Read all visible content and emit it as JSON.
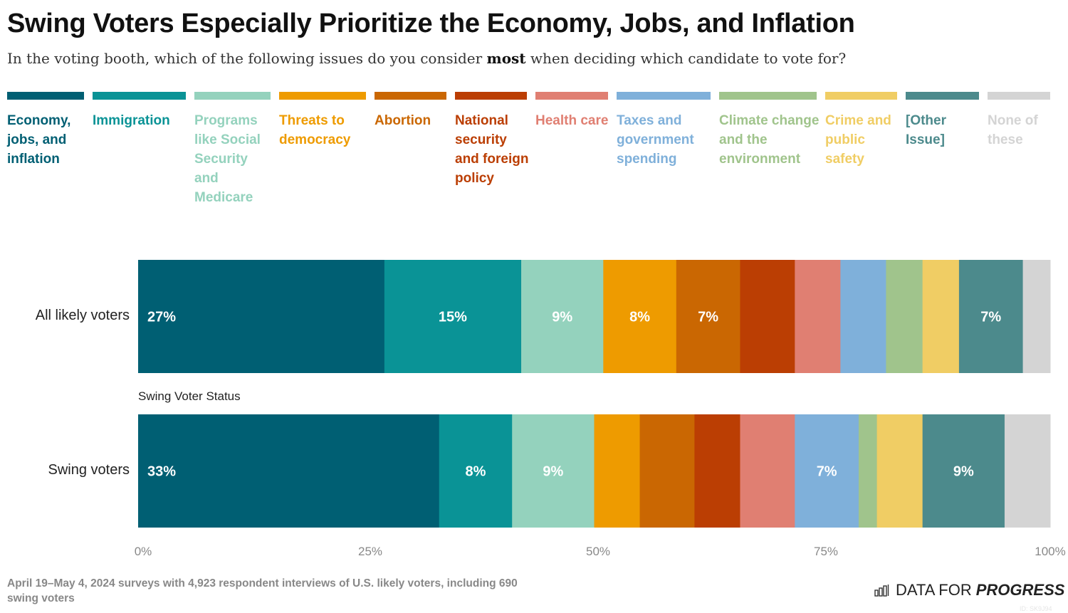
{
  "title": "Swing Voters Especially Prioritize the Economy, Jobs, and Inflation",
  "subtitle": {
    "before": "In the voting booth, which of the following issues do you consider ",
    "bold": "most",
    "after": " when deciding which candidate to vote for?"
  },
  "chart_data": {
    "type": "bar",
    "orientation": "horizontal-stacked-100",
    "categories": [
      "All likely voters",
      "Swing voters"
    ],
    "group_label": "Swing Voter Status",
    "xlim": [
      0,
      100
    ],
    "x_ticks": [
      "0%",
      "25%",
      "50%",
      "75%",
      "100%"
    ],
    "legend_placement": "top",
    "series": [
      {
        "name": "Economy, jobs, and inflation",
        "color": "#005f73",
        "values": [
          27,
          33
        ],
        "data_labels": [
          "27%",
          "33%"
        ]
      },
      {
        "name": "Immigration",
        "color": "#0a9396",
        "values": [
          15,
          8
        ],
        "data_labels": [
          "15%",
          "8%"
        ]
      },
      {
        "name": "Programs like Social Security and Medicare",
        "color": "#94d2bd",
        "values": [
          9,
          9
        ],
        "data_labels": [
          "9%",
          "9%"
        ]
      },
      {
        "name": "Threats to democracy",
        "color": "#ee9b00",
        "values": [
          8,
          5
        ],
        "data_labels": [
          "8%",
          null
        ]
      },
      {
        "name": "Abortion",
        "color": "#ca6702",
        "values": [
          7,
          6
        ],
        "data_labels": [
          "7%",
          null
        ]
      },
      {
        "name": "National security and foreign policy",
        "color": "#bb3e03",
        "values": [
          6,
          5
        ],
        "data_labels": [
          null,
          null
        ]
      },
      {
        "name": "Health care",
        "color": "#e07f72",
        "values": [
          5,
          6
        ],
        "data_labels": [
          null,
          null
        ]
      },
      {
        "name": "Taxes and government spending",
        "color": "#7fb0da",
        "values": [
          5,
          7
        ],
        "data_labels": [
          null,
          "7%"
        ]
      },
      {
        "name": "Climate change and the environment",
        "color": "#a0c48c",
        "values": [
          4,
          2
        ],
        "data_labels": [
          null,
          null
        ]
      },
      {
        "name": "Crime and public safety",
        "color": "#f0cd64",
        "values": [
          4,
          5
        ],
        "data_labels": [
          null,
          null
        ]
      },
      {
        "name": "[Other Issue]",
        "color": "#4c8a8c",
        "values": [
          7,
          9
        ],
        "data_labels": [
          "7%",
          "9%"
        ]
      },
      {
        "name": "None of these",
        "color": "#d4d4d4",
        "values": [
          3,
          5
        ],
        "data_labels": [
          null,
          null
        ]
      }
    ]
  },
  "footer": "April 19–May 4, 2024 surveys with 4,923 respondent interviews of U.S. likely voters, including 690 swing voters",
  "logo": {
    "light": "DATA FOR",
    "bold": "PROGRESS"
  },
  "id_tag": "ID: SK9J94"
}
